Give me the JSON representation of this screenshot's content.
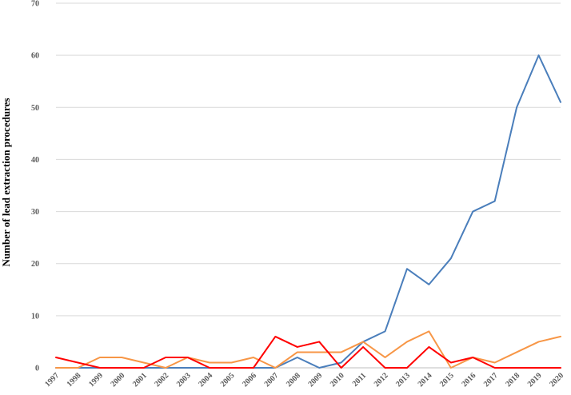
{
  "chart_data": {
    "type": "line",
    "title": "",
    "xlabel": "",
    "ylabel": "Number of lead extraction procedures",
    "ylim": [
      0,
      70
    ],
    "yticks": [
      0,
      10,
      20,
      30,
      40,
      50,
      60,
      70
    ],
    "grid": true,
    "legend": "none",
    "categories": [
      "1997",
      "1998",
      "1999",
      "2000",
      "2001",
      "2002",
      "2003",
      "2004",
      "2005",
      "2006",
      "2007",
      "2008",
      "2009",
      "2010",
      "2011",
      "2012",
      "2013",
      "2014",
      "2015",
      "2016",
      "2017",
      "2018",
      "2019",
      "2020"
    ],
    "series": [
      {
        "color": "#4a7ebb",
        "values": [
          0,
          0,
          0,
          0,
          0,
          0,
          0,
          0,
          0,
          0,
          0,
          2,
          0,
          1,
          5,
          7,
          19,
          16,
          21,
          30,
          32,
          50,
          60,
          51
        ]
      },
      {
        "color": "#f79646",
        "values": [
          0,
          0,
          2,
          2,
          1,
          0,
          2,
          1,
          1,
          2,
          0,
          3,
          3,
          3,
          5,
          2,
          5,
          7,
          0,
          2,
          1,
          3,
          5,
          6
        ]
      },
      {
        "color": "#ff0000",
        "values": [
          2,
          1,
          0,
          0,
          0,
          2,
          2,
          0,
          0,
          0,
          6,
          4,
          5,
          0,
          4,
          0,
          0,
          4,
          1,
          2,
          0,
          0,
          0,
          0
        ]
      }
    ]
  }
}
